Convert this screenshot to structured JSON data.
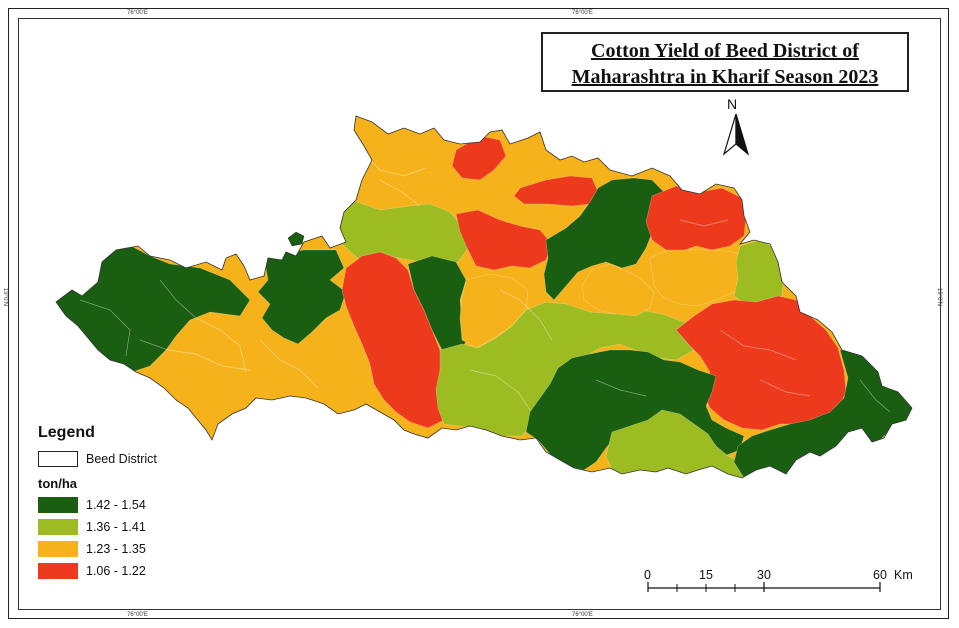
{
  "title": {
    "line1": "Cotton Yield of Beed District of",
    "line2": "Maharashtra in Kharif Season 2023"
  },
  "north": {
    "label": "N",
    "icon": "north-arrow-icon"
  },
  "graticule": {
    "top_left": "76°00'E",
    "top_right": "76°00'E",
    "bottom_left": "76°00'E",
    "bottom_right": "76°00'E",
    "left": "19°0'N",
    "right": "19°0'N"
  },
  "legend": {
    "title": "Legend",
    "boundary_label": "Beed District",
    "unit": "ton/ha",
    "classes": [
      {
        "label": "1.42 - 1.54",
        "color": "#1a5e12"
      },
      {
        "label": "1.36 - 1.41",
        "color": "#9cbc22"
      },
      {
        "label": "1.23 - 1.35",
        "color": "#f5b21b"
      },
      {
        "label": "1.06 - 1.22",
        "color": "#ee3a1c"
      }
    ]
  },
  "scale_bar": {
    "ticks": [
      "0",
      "15",
      "30",
      "60"
    ],
    "unit": "Km"
  }
}
